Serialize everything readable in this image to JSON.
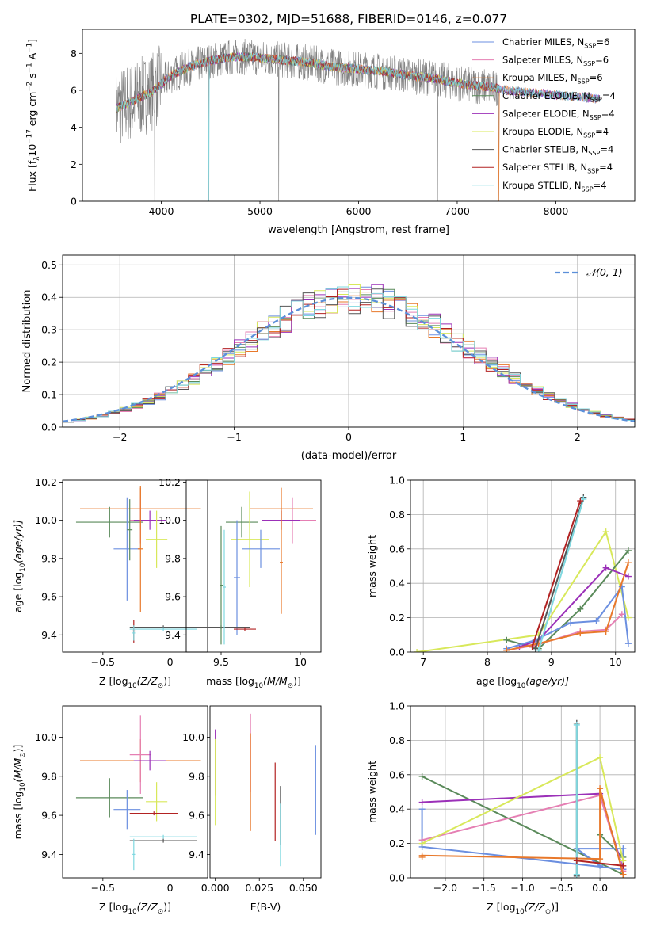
{
  "figure_title": "PLATE=0302, MJD=51688, FIBERID=0146, z=0.077",
  "chart_data": [
    {
      "id": "spectrum",
      "type": "line",
      "title": "",
      "xlabel": "wavelength [Angstrom, rest frame]",
      "ylabel": "Flux [f",
      "ylabel_parts": [
        "Flux [f",
        "λ",
        "10",
        "−17",
        " erg cm",
        "−2",
        " s",
        "−1",
        " A",
        "−1",
        "]"
      ],
      "xlim": [
        3200,
        8800
      ],
      "ylim": [
        0,
        9.3
      ],
      "xticks": [
        4000,
        5000,
        6000,
        7000,
        8000
      ],
      "yticks": [
        0,
        2,
        4,
        6,
        8
      ],
      "grid": false,
      "legend_position": "top-right",
      "continuum": {
        "x": [
          3540,
          3700,
          3900,
          4100,
          4300,
          4500,
          4700,
          4900,
          5100,
          5300,
          5500,
          5700,
          5900,
          6100,
          6300,
          6500,
          6700,
          6900,
          7100,
          7300,
          7500,
          7700,
          7900,
          8100,
          8300,
          8450
        ],
        "y": [
          5.0,
          5.4,
          5.9,
          6.8,
          7.3,
          7.6,
          7.8,
          7.8,
          7.7,
          7.6,
          7.5,
          7.3,
          7.2,
          7.1,
          7.0,
          6.8,
          6.7,
          6.5,
          6.3,
          6.2,
          6.0,
          5.9,
          5.8,
          5.7,
          5.6,
          5.5
        ]
      },
      "dips": [
        {
          "x": 3934,
          "y": 0.0
        },
        {
          "x": 4480,
          "y": 0.0
        },
        {
          "x": 5190,
          "y": 0.0
        },
        {
          "x": 6800,
          "y": 0.0
        },
        {
          "x": 7420,
          "y": 0.0
        }
      ],
      "legend": [
        {
          "label": "Chabrier MILES, N",
          "sub": "SSP",
          "suffix": "=6",
          "color": "#6b8fe0"
        },
        {
          "label": "Salpeter MILES, N",
          "sub": "SSP",
          "suffix": "=6",
          "color": "#e57fb3"
        },
        {
          "label": "Kroupa MILES, N",
          "sub": "SSP",
          "suffix": "=6",
          "color": "#e8782a"
        },
        {
          "label": "Chabrier ELODIE, N",
          "sub": "SSP",
          "suffix": "=4",
          "color": "#5a8a5a"
        },
        {
          "label": "Salpeter ELODIE, N",
          "sub": "SSP",
          "suffix": "=4",
          "color": "#9b30b8"
        },
        {
          "label": "Kroupa ELODIE, N",
          "sub": "SSP",
          "suffix": "=4",
          "color": "#d8e85a"
        },
        {
          "label": "Chabrier STELIB, N",
          "sub": "SSP",
          "suffix": "=4",
          "color": "#555555"
        },
        {
          "label": "Salpeter STELIB, N",
          "sub": "SSP",
          "suffix": "=4",
          "color": "#b22222"
        },
        {
          "label": "Kroupa STELIB, N",
          "sub": "SSP",
          "suffix": "=4",
          "color": "#7fd8e0"
        }
      ]
    },
    {
      "id": "residuals",
      "type": "bar",
      "xlabel": "(data-model)/error",
      "ylabel": "Normed distribution",
      "xlim": [
        -2.5,
        2.5
      ],
      "ylim": [
        0,
        0.53
      ],
      "xticks": [
        -2,
        -1,
        0,
        1,
        2
      ],
      "yticks": [
        0.0,
        0.1,
        0.2,
        0.3,
        0.4,
        0.5
      ],
      "grid": true,
      "legend_position": "top-right",
      "legend_label": "𝒩(0, 1)",
      "bin_width": 0.1,
      "series_colors": [
        "#6b8fe0",
        "#e57fb3",
        "#e8782a",
        "#5a8a5a",
        "#9b30b8",
        "#d8e85a",
        "#555555",
        "#b22222",
        "#7fd8e0"
      ],
      "normal": {
        "mean": 0.0,
        "sigma": 1.0,
        "color": "#5b8fd9"
      }
    },
    {
      "id": "age-vs-Z",
      "type": "scatter",
      "xlabel": "Z [log",
      "xlabel_parts": [
        "Z [log",
        "10",
        "(Z/Z",
        "⊙",
        ")]"
      ],
      "ylabel_parts": [
        "age  [log",
        "10",
        "(age/yr)]"
      ],
      "xlim": [
        -0.8,
        0.28
      ],
      "ylim": [
        9.31,
        10.21
      ],
      "xticks": [
        -0.5,
        0.0
      ],
      "yticks": [
        9.4,
        9.6,
        9.8,
        10.0,
        10.2
      ],
      "points": [
        {
          "x": -0.22,
          "y": 10.06,
          "xerr": 0.45,
          "yerr": 0.11,
          "color": "#e8782a"
        },
        {
          "x": -0.22,
          "y": 10.0,
          "xerr": 0.08,
          "yerr": 0.12,
          "color": "#e57fb3"
        },
        {
          "x": -0.15,
          "y": 10.0,
          "xerr": 0.12,
          "yerr": 0.05,
          "color": "#9b30b8"
        },
        {
          "x": -0.45,
          "y": 9.99,
          "xerr": 0.25,
          "yerr": 0.08,
          "color": "#5a8a5a"
        },
        {
          "x": -0.1,
          "y": 9.9,
          "xerr": 0.08,
          "yerr": 0.15,
          "color": "#d8e85a"
        },
        {
          "x": -0.32,
          "y": 9.85,
          "xerr": 0.1,
          "yerr": 0.27,
          "color": "#6b8fe0"
        },
        {
          "x": -0.3,
          "y": 9.95,
          "xerr": 0.02,
          "yerr": 0.16,
          "color": "#5a8a5a"
        },
        {
          "x": -0.22,
          "y": 9.85,
          "xerr": 0.02,
          "yerr": 0.33,
          "color": "#e8782a"
        },
        {
          "x": -0.05,
          "y": 9.44,
          "xerr": 0.25,
          "yerr": 0.01,
          "color": "#555555"
        },
        {
          "x": -0.05,
          "y": 9.43,
          "xerr": 0.25,
          "yerr": 0.01,
          "color": "#7fd8e0"
        },
        {
          "x": -0.27,
          "y": 9.42,
          "xerr": 0.01,
          "yerr": 0.06,
          "color": "#b22222"
        },
        {
          "x": -0.27,
          "y": 9.41,
          "xerr": 0.01,
          "yerr": 0.04,
          "color": "#7fd8e0"
        }
      ]
    },
    {
      "id": "age-vs-mass",
      "type": "scatter",
      "xlabel_parts": [
        "mass [log",
        "10",
        "(M/M",
        "⊙",
        ")]"
      ],
      "xlim": [
        9.28,
        10.13
      ],
      "ylim": [
        9.31,
        10.21
      ],
      "xticks": [
        9.5,
        10.0
      ],
      "yticks": [
        9.4,
        9.6,
        9.8,
        10.0,
        10.2
      ],
      "points": [
        {
          "x": 9.88,
          "y": 10.06,
          "xerr": 0.2,
          "yerr": 0.11,
          "color": "#e8782a"
        },
        {
          "x": 9.95,
          "y": 10.0,
          "xerr": 0.15,
          "yerr": 0.12,
          "color": "#e57fb3"
        },
        {
          "x": 9.88,
          "y": 10.0,
          "xerr": 0.12,
          "yerr": 0.05,
          "color": "#9b30b8"
        },
        {
          "x": 9.63,
          "y": 9.99,
          "xerr": 0.1,
          "yerr": 0.08,
          "color": "#5a8a5a"
        },
        {
          "x": 9.68,
          "y": 9.9,
          "xerr": 0.12,
          "yerr": 0.25,
          "color": "#d8e85a"
        },
        {
          "x": 9.75,
          "y": 9.85,
          "xerr": 0.12,
          "yerr": 0.1,
          "color": "#6b8fe0"
        },
        {
          "x": 9.6,
          "y": 9.7,
          "xerr": 0.02,
          "yerr": 0.3,
          "color": "#6b8fe0"
        },
        {
          "x": 9.88,
          "y": 9.78,
          "xerr": 0.01,
          "yerr": 0.27,
          "color": "#e8782a"
        },
        {
          "x": 9.5,
          "y": 9.44,
          "xerr": 0.18,
          "yerr": 0.01,
          "color": "#555555"
        },
        {
          "x": 9.65,
          "y": 9.43,
          "xerr": 0.07,
          "yerr": 0.01,
          "color": "#b22222"
        },
        {
          "x": 9.5,
          "y": 9.66,
          "xerr": 0.01,
          "yerr": 0.31,
          "color": "#5a8a5a"
        },
        {
          "x": 9.52,
          "y": 9.65,
          "xerr": 0.01,
          "yerr": 0.3,
          "color": "#7fd8e0"
        }
      ]
    },
    {
      "id": "massweight-vs-age",
      "type": "line",
      "xlabel_parts": [
        "age  [log",
        "10",
        "(age/yr)]"
      ],
      "ylabel": "mass weight",
      "xlim": [
        6.8,
        10.3
      ],
      "ylim": [
        0,
        1.0
      ],
      "xticks": [
        7,
        8,
        9,
        10
      ],
      "yticks": [
        0.0,
        0.2,
        0.4,
        0.6,
        0.8,
        1.0
      ],
      "grid": true,
      "series": [
        {
          "color": "#d8e85a",
          "x": [
            6.9,
            8.8,
            9.85,
            10.2
          ],
          "y": [
            0.0,
            0.1,
            0.7,
            0.2
          ]
        },
        {
          "color": "#5a8a5a",
          "x": [
            8.3,
            8.8,
            9.45,
            10.2
          ],
          "y": [
            0.07,
            0.02,
            0.25,
            0.59
          ]
        },
        {
          "color": "#9b30b8",
          "x": [
            8.5,
            8.8,
            9.85,
            10.2
          ],
          "y": [
            0.03,
            0.07,
            0.49,
            0.44
          ]
        },
        {
          "color": "#6b8fe0",
          "x": [
            8.3,
            8.75,
            9.3,
            9.7,
            10.1,
            10.2
          ],
          "y": [
            0.02,
            0.07,
            0.17,
            0.18,
            0.38,
            0.05
          ]
        },
        {
          "color": "#e57fb3",
          "x": [
            8.3,
            8.75,
            9.45,
            9.85,
            10.1
          ],
          "y": [
            0.01,
            0.04,
            0.12,
            0.13,
            0.22
          ]
        },
        {
          "color": "#e8782a",
          "x": [
            8.3,
            8.8,
            9.45,
            9.85,
            10.2
          ],
          "y": [
            0.01,
            0.05,
            0.11,
            0.12,
            0.52
          ]
        },
        {
          "color": "#555555",
          "x": [
            8.75,
            9.5
          ],
          "y": [
            0.02,
            0.9
          ]
        },
        {
          "color": "#7fd8e0",
          "x": [
            8.8,
            9.5
          ],
          "y": [
            0.01,
            0.89
          ]
        },
        {
          "color": "#b22222",
          "x": [
            8.7,
            9.45
          ],
          "y": [
            0.03,
            0.88
          ]
        }
      ]
    },
    {
      "id": "mass-vs-Z",
      "type": "scatter",
      "xlabel_parts": [
        "Z [log",
        "10",
        "(Z/Z",
        "⊙",
        ")]"
      ],
      "ylabel_parts": [
        "mass [log",
        "10",
        "(M/M",
        "⊙",
        ")]"
      ],
      "xlim": [
        -0.8,
        0.28
      ],
      "ylim": [
        9.28,
        10.16
      ],
      "xticks": [
        -0.5,
        0.0
      ],
      "yticks": [
        9.4,
        9.6,
        9.8,
        10.0
      ],
      "points": [
        {
          "x": -0.22,
          "y": 9.88,
          "xerr": 0.45,
          "yerr": 0.11,
          "color": "#e8782a"
        },
        {
          "x": -0.22,
          "y": 9.91,
          "xerr": 0.08,
          "yerr": 0.2,
          "color": "#e57fb3"
        },
        {
          "x": -0.15,
          "y": 9.88,
          "xerr": 0.12,
          "yerr": 0.05,
          "color": "#9b30b8"
        },
        {
          "x": -0.45,
          "y": 9.69,
          "xerr": 0.25,
          "yerr": 0.1,
          "color": "#5a8a5a"
        },
        {
          "x": -0.1,
          "y": 9.67,
          "xerr": 0.08,
          "yerr": 0.1,
          "color": "#d8e85a"
        },
        {
          "x": -0.32,
          "y": 9.63,
          "xerr": 0.1,
          "yerr": 0.1,
          "color": "#6b8fe0"
        },
        {
          "x": -0.12,
          "y": 9.61,
          "xerr": 0.18,
          "yerr": 0.01,
          "color": "#b22222"
        },
        {
          "x": -0.05,
          "y": 9.49,
          "xerr": 0.25,
          "yerr": 0.01,
          "color": "#7fd8e0"
        },
        {
          "x": -0.05,
          "y": 9.47,
          "xerr": 0.25,
          "yerr": 0.01,
          "color": "#555555"
        },
        {
          "x": -0.27,
          "y": 9.4,
          "xerr": 0.01,
          "yerr": 0.08,
          "color": "#7fd8e0"
        }
      ]
    },
    {
      "id": "ebv",
      "type": "scatter",
      "xlabel": "E(B-V)",
      "xlim": [
        -0.003,
        0.06
      ],
      "ylim": [
        9.28,
        10.16
      ],
      "xticks": [
        0.0,
        0.025,
        0.05
      ],
      "xtick_labels": [
        "0.000",
        "0.025",
        "0.050"
      ],
      "yticks": [
        9.4,
        9.6,
        9.8,
        10.0
      ],
      "points": [
        {
          "x": 0.0,
          "y": 9.87,
          "yerr": 0.17,
          "color": "#9b30b8"
        },
        {
          "x": 0.0,
          "y": 9.77,
          "yerr": 0.22,
          "color": "#d8e85a"
        },
        {
          "x": 0.02,
          "y": 9.92,
          "yerr": 0.2,
          "color": "#e57fb3"
        },
        {
          "x": 0.02,
          "y": 9.77,
          "yerr": 0.25,
          "color": "#e8782a"
        },
        {
          "x": 0.034,
          "y": 9.67,
          "yerr": 0.2,
          "color": "#b22222"
        },
        {
          "x": 0.037,
          "y": 9.6,
          "yerr": 0.15,
          "color": "#555555"
        },
        {
          "x": 0.037,
          "y": 9.5,
          "yerr": 0.16,
          "color": "#7fd8e0"
        },
        {
          "x": 0.057,
          "y": 9.73,
          "yerr": 0.23,
          "color": "#6b8fe0"
        }
      ]
    },
    {
      "id": "massweight-vs-Z",
      "type": "line",
      "xlabel_parts": [
        "Z [log",
        "10",
        "(Z/Z",
        "⊙",
        ")]"
      ],
      "ylabel": "mass weight",
      "xlim": [
        -2.45,
        0.45
      ],
      "ylim": [
        0,
        1.0
      ],
      "xticks": [
        -2.0,
        -1.5,
        -1.0,
        -0.5,
        0.0
      ],
      "xtick_labels": [
        "−2.0",
        "−1.5",
        "−1.0",
        "−0.5",
        "0.0"
      ],
      "yticks": [
        0.0,
        0.2,
        0.4,
        0.6,
        0.8,
        1.0
      ],
      "grid": true,
      "series": [
        {
          "color": "#5a8a5a",
          "x": [
            -2.3,
            0.3
          ],
          "y": [
            0.59,
            0.02
          ]
        },
        {
          "color": "#5a8a5a",
          "x": [
            0.0,
            0.3
          ],
          "y": [
            0.25,
            0.12
          ]
        },
        {
          "color": "#9b30b8",
          "x": [
            -2.3,
            0.0,
            0.3
          ],
          "y": [
            0.44,
            0.49,
            0.05
          ]
        },
        {
          "color": "#6b8fe0",
          "x": [
            -2.3,
            -2.3,
            0.3,
            0.3,
            -0.3,
            0.0
          ],
          "y": [
            0.4,
            0.18,
            0.05,
            0.17,
            0.17,
            0.07
          ]
        },
        {
          "color": "#e57fb3",
          "x": [
            -2.3,
            0.0,
            0.3
          ],
          "y": [
            0.22,
            0.48,
            0.04
          ]
        },
        {
          "color": "#e8782a",
          "x": [
            -2.3,
            -2.3,
            0.0,
            0.0,
            0.3
          ],
          "y": [
            0.12,
            0.13,
            0.11,
            0.52,
            0.02
          ]
        },
        {
          "color": "#d8e85a",
          "x": [
            -2.3,
            0.0,
            0.3
          ],
          "y": [
            0.2,
            0.7,
            0.1
          ]
        },
        {
          "color": "#555555",
          "x": [
            -0.3,
            -0.3
          ],
          "y": [
            0.01,
            0.9
          ]
        },
        {
          "color": "#7fd8e0",
          "x": [
            -0.3,
            -0.3
          ],
          "y": [
            0.02,
            0.89
          ]
        },
        {
          "color": "#b22222",
          "x": [
            -0.3,
            0.3
          ],
          "y": [
            0.1,
            0.07
          ]
        }
      ]
    }
  ]
}
